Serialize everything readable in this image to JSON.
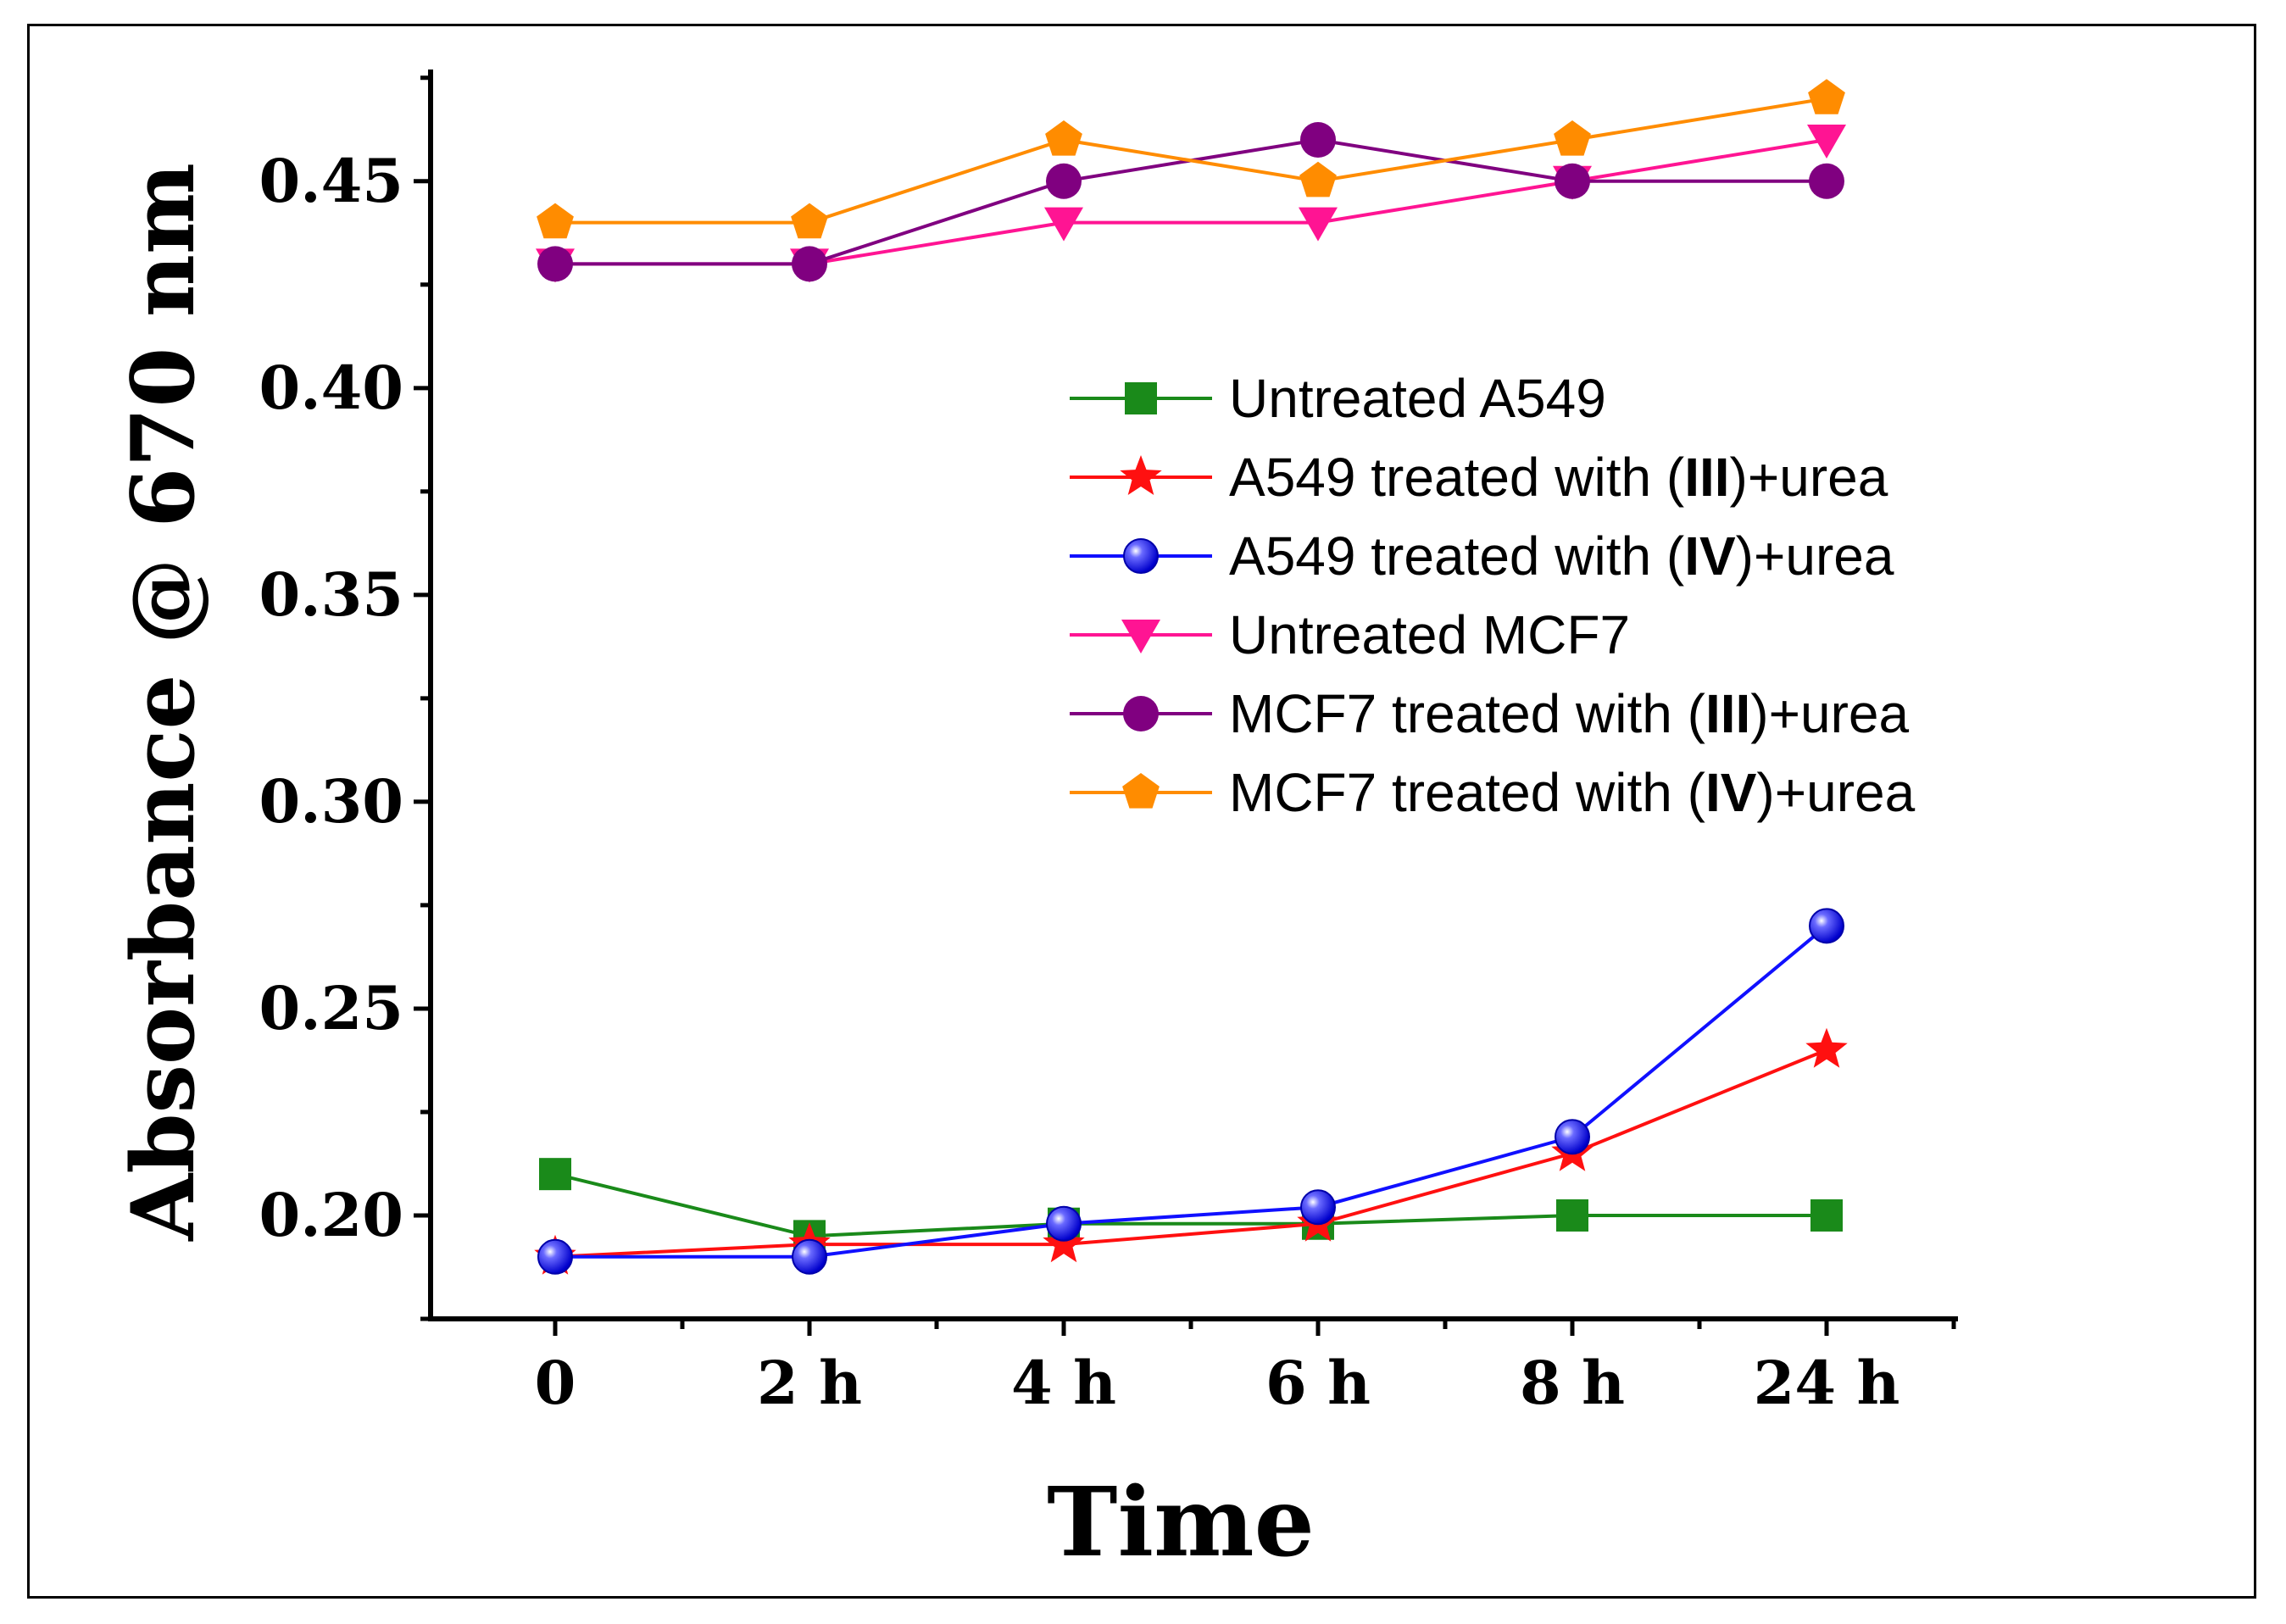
{
  "chart_data": {
    "type": "line",
    "xlabel": "Time",
    "ylabel": "Absorbance @ 670 nm",
    "categories": [
      "0",
      "2 h",
      "4 h",
      "6 h",
      "8 h",
      "24 h"
    ],
    "ylim": [
      0.175,
      0.477
    ],
    "yticks": [
      "0.20",
      "0.25",
      "0.30",
      "0.35",
      "0.40",
      "0.45"
    ],
    "ytick_values": [
      0.2,
      0.25,
      0.3,
      0.35,
      0.4,
      0.45
    ],
    "legend_position": "center-right",
    "series": [
      {
        "name": "Untreated A549",
        "color": "#1a8a1a",
        "marker": "square",
        "values": [
          0.21,
          0.195,
          0.198,
          0.198,
          0.2,
          0.2
        ]
      },
      {
        "name": "A549 treated with (III)+urea",
        "color": "#ff1010",
        "marker": "star",
        "legend_parts": [
          "A549 treated with (",
          "III",
          ")+urea"
        ],
        "values": [
          0.19,
          0.193,
          0.193,
          0.198,
          0.215,
          0.24
        ]
      },
      {
        "name": "A549 treated with (IV)+urea",
        "color": "#1010ff",
        "marker": "sphere",
        "legend_parts": [
          "A549 treated with (",
          "IV",
          ")+urea"
        ],
        "values": [
          0.19,
          0.19,
          0.198,
          0.202,
          0.219,
          0.27
        ]
      },
      {
        "name": "Untreated MCF7",
        "color": "#ff1493",
        "marker": "triangle-down",
        "values": [
          0.43,
          0.43,
          0.44,
          0.44,
          0.45,
          0.46
        ]
      },
      {
        "name": "MCF7 treated with (III)+urea",
        "color": "#800080",
        "marker": "circle",
        "legend_parts": [
          "MCF7 treated with (",
          "III",
          ")+urea"
        ],
        "values": [
          0.43,
          0.43,
          0.45,
          0.46,
          0.45,
          0.45
        ]
      },
      {
        "name": "MCF7 treated with (IV)+urea",
        "color": "#ff8c00",
        "marker": "pentagon",
        "legend_parts": [
          "MCF7 treated with (",
          "IV",
          ")+urea"
        ],
        "values": [
          0.44,
          0.44,
          0.46,
          0.45,
          0.46,
          0.47
        ]
      }
    ]
  }
}
